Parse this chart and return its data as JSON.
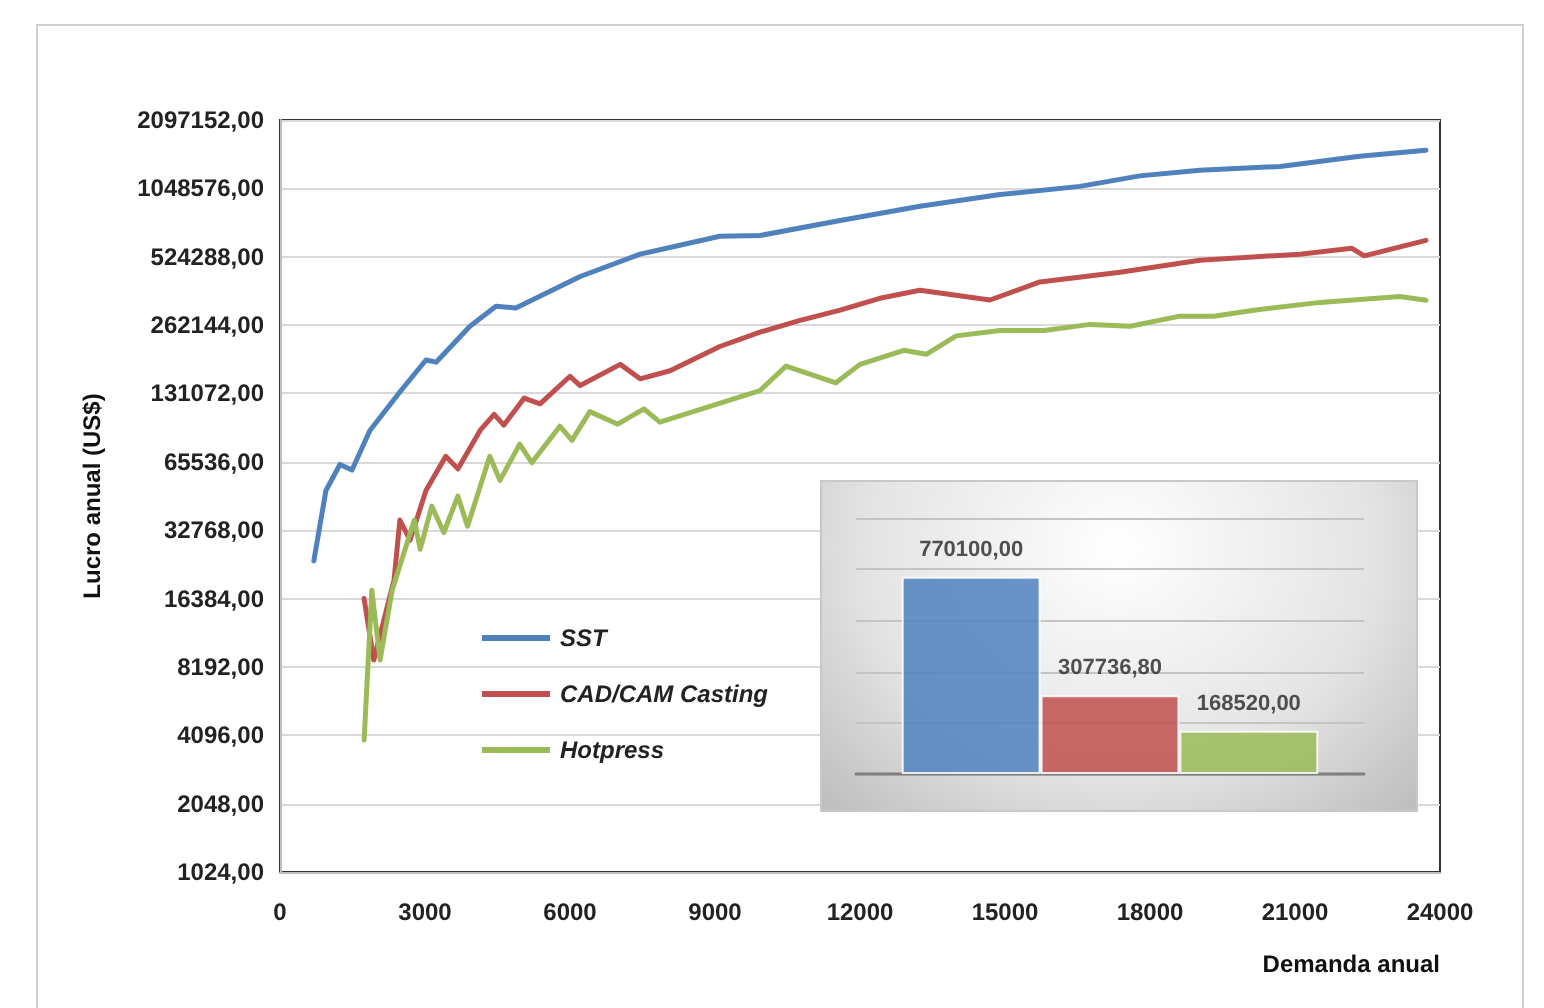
{
  "chart_data": [
    {
      "type": "line",
      "xlabel": "Demanda anual",
      "ylabel": "Lucro anual (US$)",
      "log": "y",
      "grid": "y",
      "legend": "left",
      "marker": "none",
      "line_style": "solid",
      "xlim": [
        0,
        24000
      ],
      "xticks": [
        0,
        3000,
        6000,
        9000,
        12000,
        15000,
        18000,
        21000,
        24000
      ],
      "ylim": [
        1024,
        2097152
      ],
      "yticks": [
        {
          "value": 1024,
          "label": "1024,00"
        },
        {
          "value": 2048,
          "label": "2048,00"
        },
        {
          "value": 4096,
          "label": "4096,00"
        },
        {
          "value": 8192,
          "label": "8192,00"
        },
        {
          "value": 16384,
          "label": "16384,00"
        },
        {
          "value": 32768,
          "label": "32768,00"
        },
        {
          "value": 65536,
          "label": "65536,00"
        },
        {
          "value": 131072,
          "label": "131072,00"
        },
        {
          "value": 262144,
          "label": "262144,00"
        },
        {
          "value": 524288,
          "label": "524288,00"
        },
        {
          "value": 1048576,
          "label": "1048576,00"
        },
        {
          "value": 2097152,
          "label": "2097152,00"
        }
      ],
      "series": [
        {
          "name": "SST",
          "color": "#4f81bd",
          "x": [
            700,
            950,
            1240,
            1490,
            1860,
            2480,
            3020,
            3230,
            3930,
            4470,
            4880,
            6210,
            7450,
            9100,
            9930,
            11590,
            13240,
            14900,
            16550,
            17790,
            19030,
            20690,
            22340,
            23710
          ],
          "values": [
            24000,
            49000,
            63800,
            60300,
            90100,
            133000,
            184000,
            180000,
            259000,
            317000,
            312000,
            429000,
            538000,
            645000,
            650000,
            757000,
            875000,
            985000,
            1070000,
            1190000,
            1260000,
            1310000,
            1452000,
            1544000
          ]
        },
        {
          "name": "CAD/CAM Casting",
          "color": "#c0504d",
          "x": [
            1740,
            1940,
            2360,
            2480,
            2690,
            3020,
            3430,
            3680,
            4140,
            4430,
            4630,
            5050,
            5380,
            6000,
            6210,
            7040,
            7450,
            8070,
            9100,
            9930,
            10760,
            11590,
            12410,
            13240,
            14690,
            15720,
            17380,
            19030,
            21100,
            22180,
            22430,
            23710
          ],
          "values": [
            16384,
            8780,
            19800,
            36300,
            29600,
            49000,
            69300,
            61000,
            90100,
            106000,
            95000,
            125000,
            118000,
            156000,
            142000,
            176000,
            152000,
            165000,
            211000,
            244000,
            275000,
            305000,
            344000,
            373000,
            338000,
            406000,
            448000,
            506000,
            538000,
            571000,
            529000,
            619000
          ]
        },
        {
          "name": "Hotpress",
          "color": "#9bbb59",
          "x": [
            1740,
            1900,
            2070,
            2320,
            2780,
            2900,
            3140,
            3390,
            3680,
            3880,
            4340,
            4550,
            4960,
            5210,
            5790,
            6040,
            6410,
            6990,
            7530,
            7860,
            9930,
            10470,
            11500,
            12000,
            12910,
            13370,
            13990,
            14900,
            15810,
            16760,
            17590,
            18620,
            19320,
            20150,
            21520,
            23170,
            23710
          ],
          "values": [
            3900,
            17800,
            8780,
            17800,
            36300,
            27000,
            41800,
            32000,
            46300,
            34100,
            69300,
            54300,
            78400,
            65000,
            94000,
            81500,
            109000,
            96000,
            112000,
            98000,
            135000,
            173000,
            146000,
            176000,
            203000,
            195000,
            235000,
            248000,
            248000,
            264000,
            259000,
            287000,
            287000,
            305000,
            330000,
            350000,
            337000
          ]
        }
      ]
    },
    {
      "type": "bar",
      "categories": [
        null
      ],
      "ylim": [
        0,
        1000000
      ],
      "yticks": [
        0,
        200000,
        400000,
        600000,
        800000,
        1000000
      ],
      "tick_labels": false,
      "grid": "y",
      "data_labels": true,
      "series": [
        {
          "color": "#4f81bd",
          "values": [
            770100
          ],
          "value_labels": [
            "770100,00"
          ]
        },
        {
          "color": "#c0504d",
          "values": [
            307736.8
          ],
          "value_labels": [
            "307736,80"
          ]
        },
        {
          "color": "#9bbb59",
          "values": [
            168520
          ],
          "value_labels": [
            "168520,00"
          ]
        }
      ]
    }
  ]
}
